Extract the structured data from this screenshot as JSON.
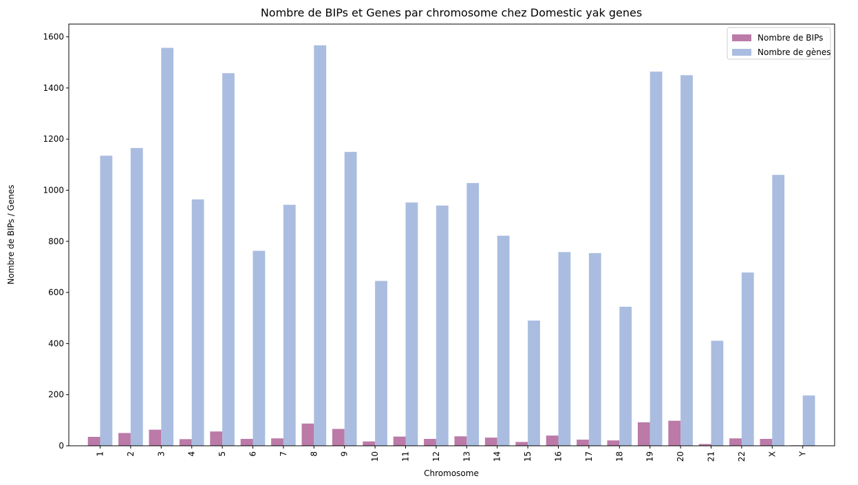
{
  "chart_data": {
    "type": "bar",
    "title": "Nombre de BIPs et Genes par chromosome chez Domestic yak genes",
    "xlabel": "Chromosome",
    "ylabel": "Nombre de BIPs / Genes",
    "categories": [
      "1",
      "2",
      "3",
      "4",
      "5",
      "6",
      "7",
      "8",
      "9",
      "10",
      "11",
      "12",
      "13",
      "14",
      "15",
      "16",
      "17",
      "18",
      "19",
      "20",
      "21",
      "22",
      "X",
      "Y"
    ],
    "ylim": [
      0,
      1650
    ],
    "yticks": [
      0,
      200,
      400,
      600,
      800,
      1000,
      1200,
      1400,
      1600
    ],
    "series": [
      {
        "name": "Nombre de BIPs",
        "color": "#bb7aa7",
        "values": [
          35,
          50,
          63,
          26,
          56,
          27,
          29,
          87,
          66,
          17,
          36,
          27,
          37,
          32,
          15,
          40,
          24,
          21,
          92,
          98,
          7,
          29,
          27,
          2
        ]
      },
      {
        "name": "Nombre de gènes",
        "color": "#aabde0",
        "values": [
          1135,
          1165,
          1557,
          964,
          1458,
          763,
          943,
          1567,
          1150,
          645,
          952,
          940,
          1028,
          822,
          490,
          758,
          754,
          544,
          1464,
          1450,
          411,
          678,
          1060,
          197
        ]
      }
    ],
    "legend": {
      "position": "top-right"
    },
    "grid": false
  }
}
